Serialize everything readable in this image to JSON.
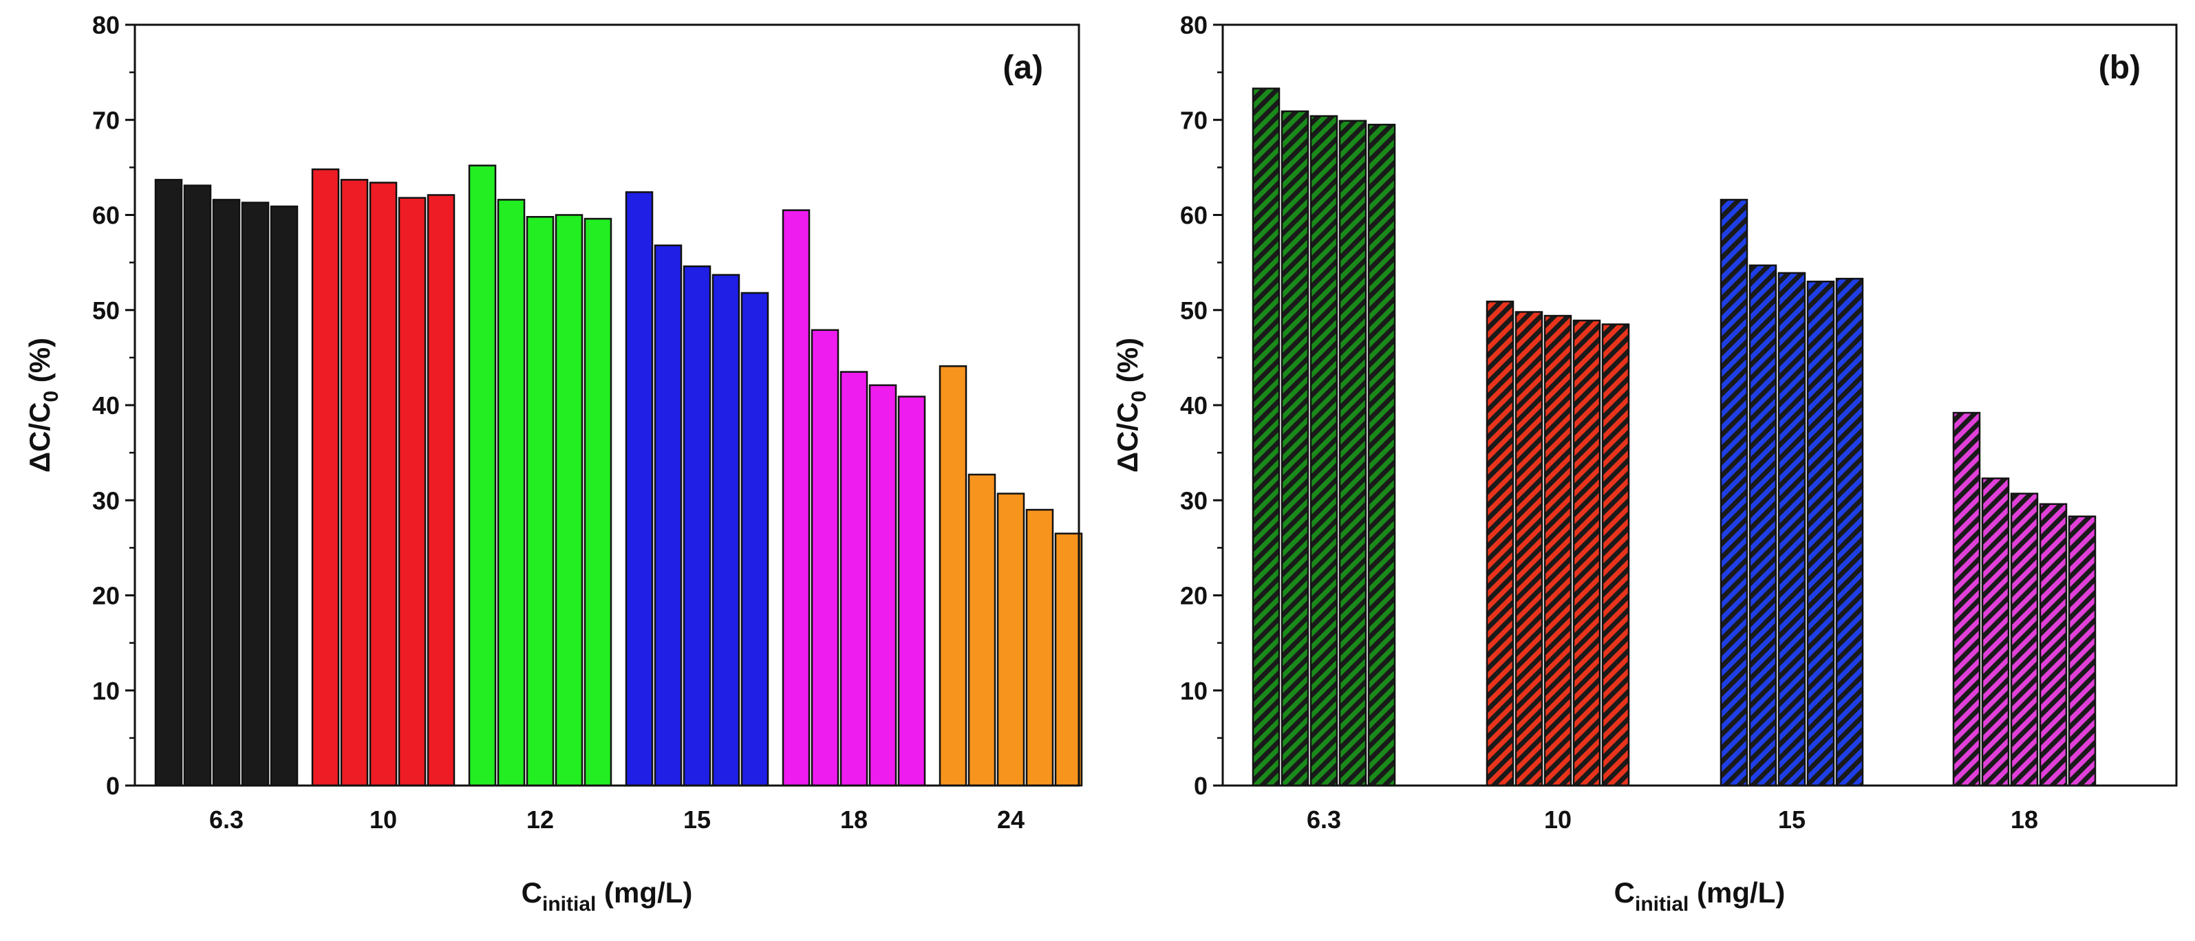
{
  "chart_data": [
    {
      "type": "bar",
      "panel_label": "(a)",
      "xlabel": "C",
      "xlabel_sub": "initial",
      "xlabel_unit": "(mg/L)",
      "ylabel": "ΔC/C",
      "ylabel_sub": "0",
      "ylabel_unit": "(%)",
      "ylim": [
        0,
        80
      ],
      "yticks": [
        "0",
        "10",
        "20",
        "30",
        "40",
        "50",
        "60",
        "70",
        "80"
      ],
      "hatched": false,
      "groups": [
        {
          "label": "6.3",
          "color": "#1a1a1a",
          "values": [
            63.7,
            63.1,
            61.6,
            61.3,
            60.9
          ]
        },
        {
          "label": "10",
          "color": "#ee1c24",
          "values": [
            64.8,
            63.7,
            63.4,
            61.8,
            62.1
          ]
        },
        {
          "label": "12",
          "color": "#22ee22",
          "values": [
            65.2,
            61.6,
            59.8,
            60.0,
            59.6
          ]
        },
        {
          "label": "15",
          "color": "#1f1fe6",
          "values": [
            62.4,
            56.8,
            54.6,
            53.7,
            51.8
          ]
        },
        {
          "label": "18",
          "color": "#ef1cef",
          "values": [
            60.5,
            47.9,
            43.5,
            42.1,
            40.9
          ]
        },
        {
          "label": "24",
          "color": "#f7941d",
          "values": [
            44.1,
            32.7,
            30.7,
            29.0,
            26.5
          ]
        }
      ]
    },
    {
      "type": "bar",
      "panel_label": "(b)",
      "xlabel": "C",
      "xlabel_sub": "initial",
      "xlabel_unit": "(mg/L)",
      "ylabel": "ΔC/C",
      "ylabel_sub": "0",
      "ylabel_unit": "(%)",
      "ylim": [
        0,
        80
      ],
      "yticks": [
        "0",
        "10",
        "20",
        "30",
        "40",
        "50",
        "60",
        "70",
        "80"
      ],
      "hatched": true,
      "groups": [
        {
          "label": "6.3",
          "color": "#1a8a1a",
          "values": [
            73.3,
            70.9,
            70.4,
            69.9,
            69.5
          ]
        },
        {
          "label": "10",
          "color": "#e8341c",
          "values": [
            50.9,
            49.8,
            49.4,
            48.9,
            48.5
          ]
        },
        {
          "label": "15",
          "color": "#1f3fe6",
          "values": [
            61.6,
            54.7,
            53.9,
            53.0,
            53.3
          ]
        },
        {
          "label": "18",
          "color": "#e040d8",
          "values": [
            39.2,
            32.3,
            30.7,
            29.6,
            28.3
          ]
        }
      ]
    }
  ]
}
